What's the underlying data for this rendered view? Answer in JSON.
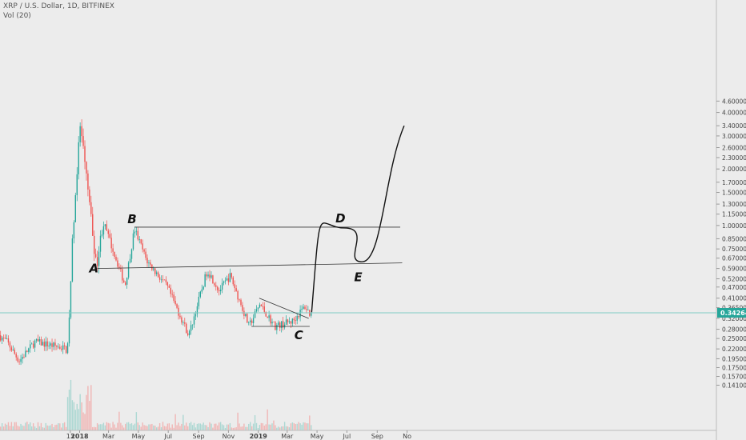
{
  "legend": {
    "symbol": "XRP / U.S. Dollar, 1D, BITFINEX",
    "volume": "Vol (20)"
  },
  "colors": {
    "background": "#ececec",
    "up": "#26a69a",
    "down": "#ef5350",
    "drawing": "#111111",
    "last_price_tag": "#26a69a",
    "current_price_line": "#80cbc4"
  },
  "chart_data": {
    "type": "candlestick",
    "scale": "log",
    "axis_side": "right",
    "y_ticks": [
      "4.60000",
      "4.00000",
      "3.40000",
      "3.00000",
      "2.60000",
      "2.30000",
      "2.00000",
      "1.70000",
      "1.50000",
      "1.30000",
      "1.15000",
      "1.00000",
      "0.85000",
      "0.75000",
      "0.67000",
      "0.59000",
      "0.52000",
      "0.47000",
      "0.41000",
      "0.36500",
      "0.32000",
      "0.28000",
      "0.25000",
      "0.22000",
      "0.19500",
      "0.17500",
      "0.15700",
      "0.14100"
    ],
    "x_ticks": [
      {
        "label": "13",
        "year": false
      },
      {
        "label": "2018",
        "year": true
      },
      {
        "label": "Mar",
        "year": false
      },
      {
        "label": "May",
        "year": false
      },
      {
        "label": "Jul",
        "year": false
      },
      {
        "label": "Sep",
        "year": false
      },
      {
        "label": "Nov",
        "year": false
      },
      {
        "label": "2019",
        "year": true
      },
      {
        "label": "Mar",
        "year": false
      },
      {
        "label": "May",
        "year": false
      },
      {
        "label": "Jul",
        "year": false
      },
      {
        "label": "Sep",
        "year": false
      },
      {
        "label": "No",
        "year": false
      }
    ],
    "last_price": "0.34264",
    "key_prices": [
      {
        "date": "2017-12-10",
        "price": 0.22
      },
      {
        "date": "2017-12-20",
        "price": 0.9
      },
      {
        "date": "2018-01-04",
        "price": 3.4
      },
      {
        "date": "2018-01-20",
        "price": 1.55
      },
      {
        "date": "2018-02-06",
        "price": 0.6
      },
      {
        "date": "2018-02-20",
        "price": 1.05
      },
      {
        "date": "2018-04-06",
        "price": 0.48
      },
      {
        "date": "2018-04-25",
        "price": 0.96
      },
      {
        "date": "2018-05-20",
        "price": 0.65
      },
      {
        "date": "2018-07-01",
        "price": 0.47
      },
      {
        "date": "2018-08-14",
        "price": 0.26
      },
      {
        "date": "2018-09-21",
        "price": 0.58
      },
      {
        "date": "2018-10-15",
        "price": 0.45
      },
      {
        "date": "2018-11-07",
        "price": 0.54
      },
      {
        "date": "2018-12-15",
        "price": 0.29
      },
      {
        "date": "2019-01-06",
        "price": 0.38
      },
      {
        "date": "2019-02-06",
        "price": 0.29
      },
      {
        "date": "2019-03-15",
        "price": 0.31
      },
      {
        "date": "2019-04-08",
        "price": 0.37
      },
      {
        "date": "2019-04-18",
        "price": 0.34
      }
    ],
    "labels": [
      {
        "text": "A",
        "date": "2018-02-06",
        "price": 0.59
      },
      {
        "text": "B",
        "date": "2018-04-25",
        "price": 1.08
      },
      {
        "text": "C",
        "date": "2019-04-01",
        "price": 0.26
      },
      {
        "text": "D",
        "date": "2019-06-24",
        "price": 1.09
      },
      {
        "text": "E",
        "date": "2019-08-01",
        "price": 0.53
      }
    ],
    "drawings": [
      {
        "type": "line",
        "from": {
          "date": "2018-02-06",
          "price": 0.59
        },
        "to": {
          "date": "2019-10-22",
          "price": 0.632
        }
      },
      {
        "type": "line",
        "from": {
          "date": "2018-04-23",
          "price": 0.98
        },
        "to": {
          "date": "2019-10-18",
          "price": 0.98
        }
      },
      {
        "type": "line",
        "from": {
          "date": "2018-12-18",
          "price": 0.29
        },
        "to": {
          "date": "2019-04-16",
          "price": 0.29
        }
      },
      {
        "type": "line",
        "from": {
          "date": "2019-01-03",
          "price": 0.41
        },
        "to": {
          "date": "2019-04-14",
          "price": 0.32
        }
      },
      {
        "type": "curve",
        "points": [
          {
            "date": "2019-04-20",
            "price": 0.345
          },
          {
            "date": "2019-06-26",
            "price": 0.97
          },
          {
            "date": "2019-08-01",
            "price": 0.64
          },
          {
            "date": "2019-10-26",
            "price": 3.4
          }
        ]
      }
    ]
  }
}
